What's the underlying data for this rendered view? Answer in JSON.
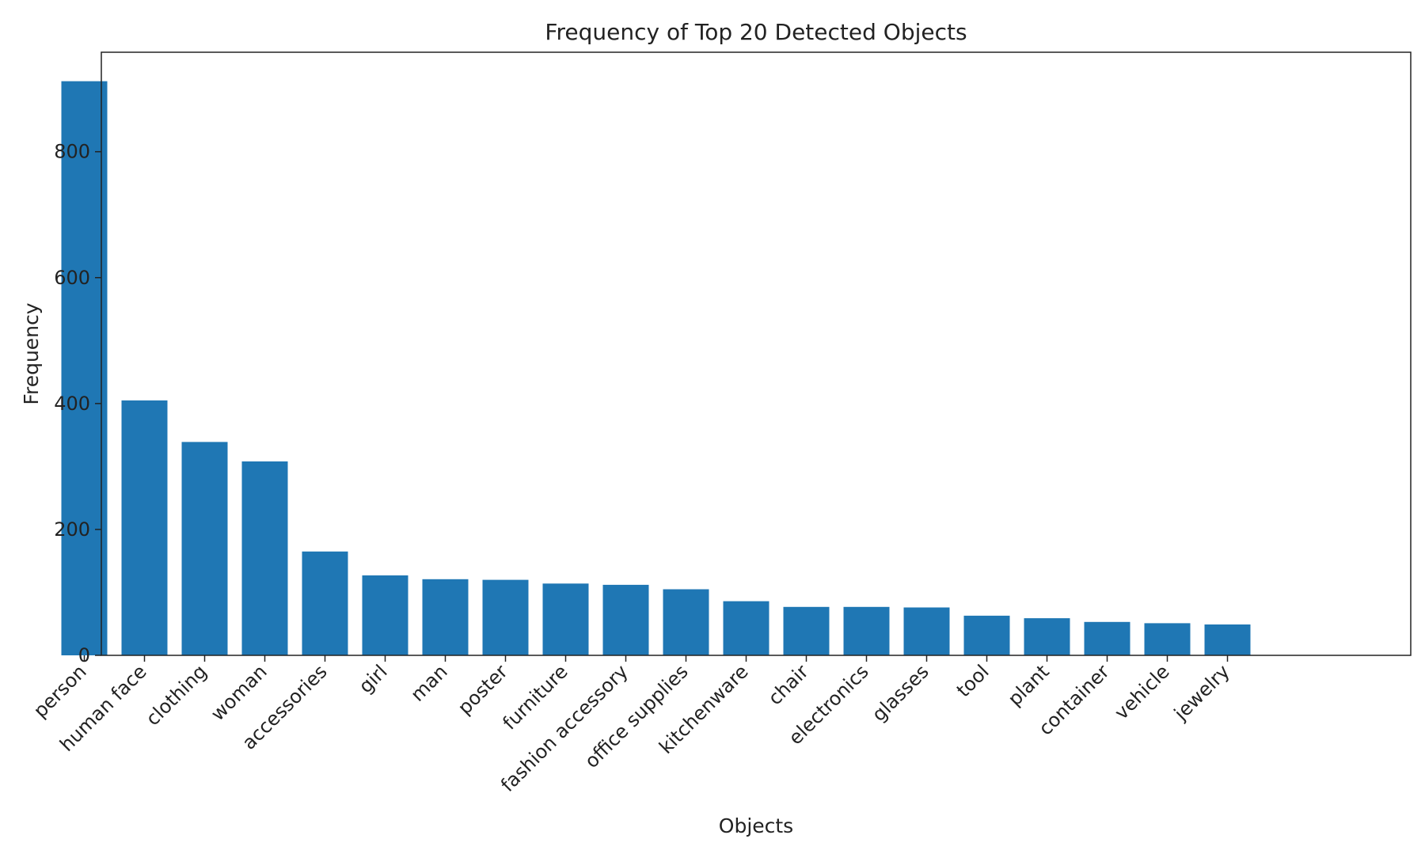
{
  "chart_data": {
    "type": "bar",
    "title": "Frequency of Top 20 Detected Objects",
    "xlabel": "Objects",
    "ylabel": "Frequency",
    "categories": [
      "person",
      "human face",
      "clothing",
      "woman",
      "accessories",
      "girl",
      "man",
      "poster",
      "furniture",
      "fashion accessory",
      "office supplies",
      "kitchenware",
      "chair",
      "electronics",
      "glasses",
      "tool",
      "plant",
      "container",
      "vehicle",
      "jewelry"
    ],
    "values": [
      912,
      405,
      339,
      308,
      165,
      127,
      121,
      120,
      114,
      112,
      105,
      86,
      77,
      77,
      76,
      63,
      59,
      53,
      51,
      49
    ],
    "yticks": [
      0,
      200,
      400,
      600,
      800
    ],
    "ylim": [
      0,
      958
    ],
    "grid": false,
    "legend": "none",
    "bar_color": "#1f77b4"
  }
}
